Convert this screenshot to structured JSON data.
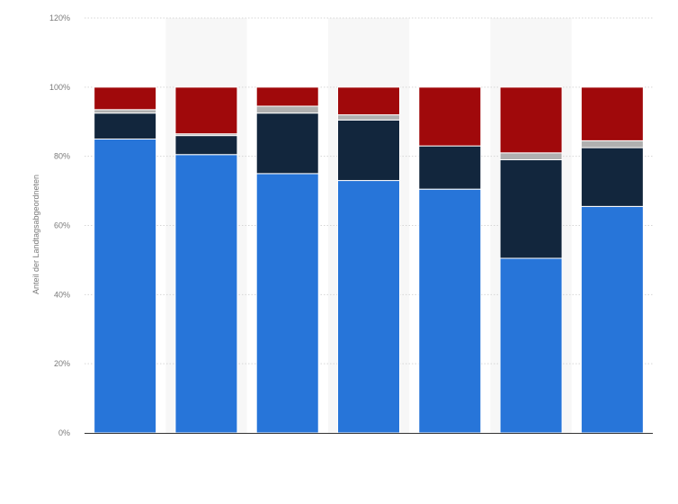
{
  "chart_data": {
    "type": "bar",
    "stacked": true,
    "categories": [
      "",
      "",
      "",
      "",
      "",
      "",
      ""
    ],
    "ylabel": "Anteil der Landtagsabgeordneten",
    "ylim": [
      0,
      120
    ],
    "yticks": [
      0,
      20,
      40,
      60,
      80,
      100,
      120
    ],
    "ytick_labels": [
      "0%",
      "20%",
      "40%",
      "60%",
      "80%",
      "100%",
      "120%"
    ],
    "grid": true,
    "series": [
      {
        "values": [
          85,
          80.5,
          75,
          73,
          70.5,
          50.5,
          65.5
        ],
        "color": "#2775d9"
      },
      {
        "values": [
          7.5,
          5.5,
          17.5,
          17.5,
          12.5,
          28.5,
          17
        ],
        "color": "#12263d"
      },
      {
        "values": [
          1,
          0.5,
          2,
          1.5,
          0,
          2,
          2
        ],
        "color": "#b0b0b0"
      },
      {
        "values": [
          6.5,
          13.5,
          5.5,
          8,
          17,
          19,
          15.5
        ],
        "color": "#a0090b"
      }
    ]
  }
}
